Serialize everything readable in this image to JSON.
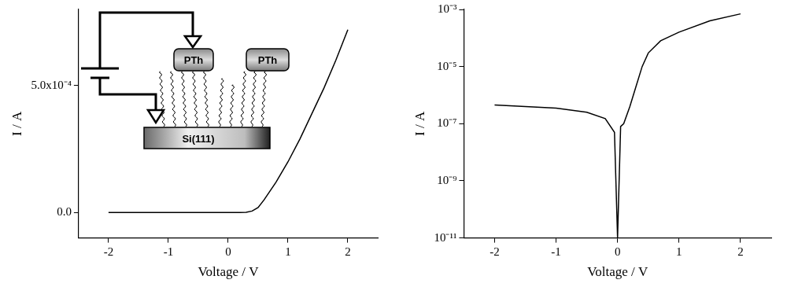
{
  "chart_data": [
    {
      "type": "line",
      "x_label": "Voltage / V",
      "y_label": "I / A",
      "x": [
        -2.0,
        -1.5,
        -1.0,
        -0.5,
        0.0,
        0.2,
        0.3,
        0.4,
        0.5,
        0.6,
        0.8,
        1.0,
        1.2,
        1.4,
        1.6,
        1.8,
        2.0
      ],
      "values": [
        0,
        0,
        0,
        0,
        0,
        0,
        1e-06,
        6e-06,
        2e-05,
        5e-05,
        0.00012,
        0.0002,
        0.00029,
        0.00039,
        0.00049,
        0.0006,
        0.00072
      ],
      "color": "#000000",
      "xlim": [
        -2.5,
        2.5
      ],
      "xticks": [
        -2,
        -1,
        0,
        1,
        2
      ],
      "ylim": [
        -0.0001,
        0.0008
      ],
      "yticks": [
        {
          "value": 0,
          "label": "0.0"
        },
        {
          "value": 0.0005,
          "label": "5.0x10⁻⁴"
        }
      ],
      "grid": false,
      "annotations": [
        "PTh",
        "PTh",
        "Si(111)"
      ]
    },
    {
      "type": "line",
      "x_label": "Voltage / V",
      "y_label": "I / A",
      "x": [
        -2.0,
        -1.5,
        -1.0,
        -0.5,
        -0.2,
        -0.05,
        0.0,
        0.05,
        0.1,
        0.2,
        0.3,
        0.4,
        0.5,
        0.7,
        1.0,
        1.5,
        2.0
      ],
      "values": [
        4.5e-07,
        4e-07,
        3.5e-07,
        2.5e-07,
        1.5e-07,
        5e-08,
        1e-11,
        8e-08,
        1e-07,
        4e-07,
        2e-06,
        1e-05,
        3e-05,
        8e-05,
        0.00016,
        0.0004,
        0.0007
      ],
      "color": "#000000",
      "log": "y",
      "xlim": [
        -2.5,
        2.5
      ],
      "xticks": [
        -2,
        -1,
        0,
        1,
        2
      ],
      "ylim": [
        1e-11,
        0.001
      ],
      "yticks": [
        {
          "value": 1e-11,
          "label": "10⁻¹¹"
        },
        {
          "value": 1e-09,
          "label": "10⁻⁹"
        },
        {
          "value": 1e-07,
          "label": "10⁻⁷"
        },
        {
          "value": 1e-05,
          "label": "10⁻⁵"
        },
        {
          "value": 0.001,
          "label": "10⁻³"
        }
      ],
      "grid": false
    }
  ]
}
